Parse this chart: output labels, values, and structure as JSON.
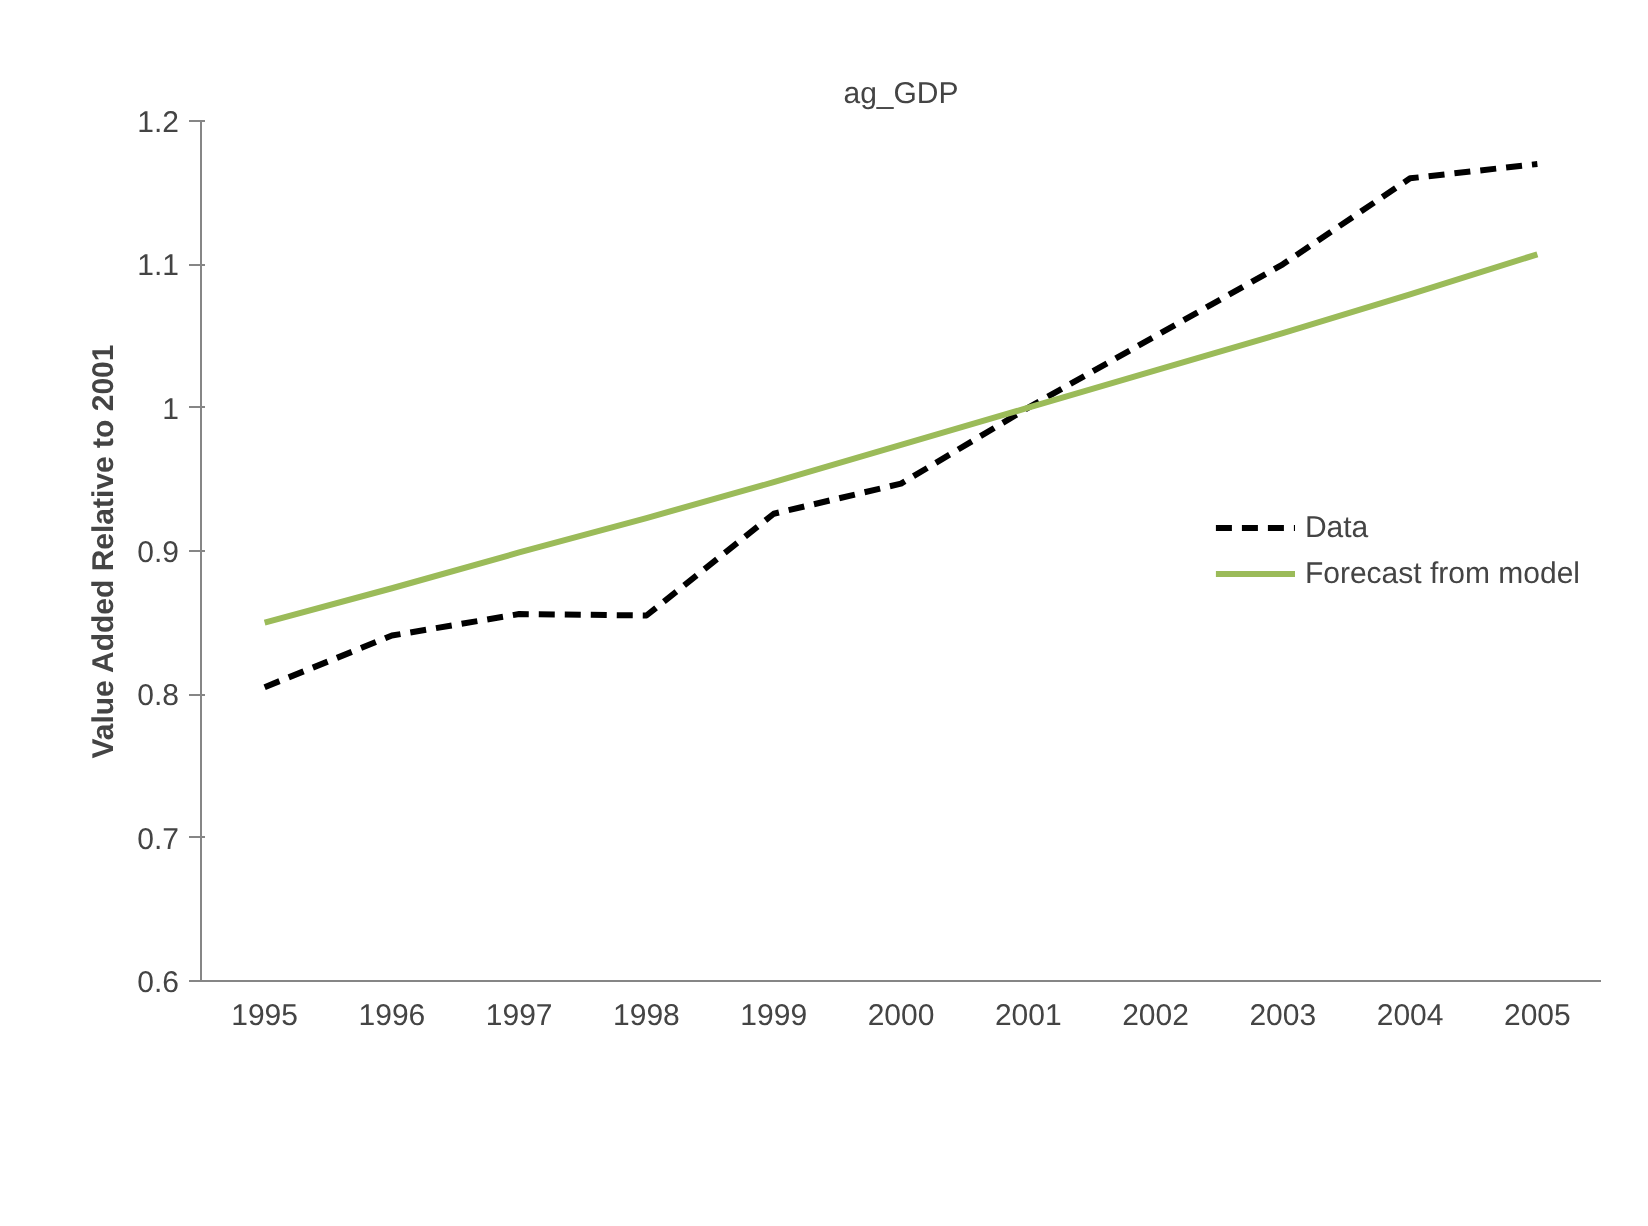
{
  "chart_data": {
    "type": "line",
    "title": "ag_GDP",
    "ylabel": "Value Added Relative to 2001",
    "categories": [
      "1995",
      "1996",
      "1997",
      "1998",
      "1999",
      "2000",
      "2001",
      "2002",
      "2003",
      "2004",
      "2005"
    ],
    "series": [
      {
        "name": "Data",
        "color": "#000000",
        "line_style": "dashed",
        "values": [
          0.805,
          0.841,
          0.856,
          0.855,
          0.926,
          0.947,
          1.0,
          1.05,
          1.1,
          1.16,
          1.17
        ]
      },
      {
        "name": "Forecast from model",
        "color": "#9bbb59",
        "line_style": "solid",
        "values": [
          0.85,
          0.874,
          0.899,
          0.923,
          0.948,
          0.974,
          1.0,
          1.026,
          1.052,
          1.079,
          1.107
        ]
      }
    ],
    "ylim": [
      0.6,
      1.2
    ],
    "yticks": [
      0.6,
      0.7,
      0.8,
      0.9,
      1,
      1.1,
      1.2
    ],
    "grid": false,
    "legend": "right",
    "marker": "none"
  }
}
